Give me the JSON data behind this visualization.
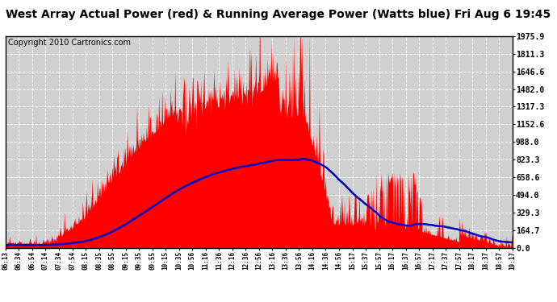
{
  "title": "West Array Actual Power (red) & Running Average Power (Watts blue) Fri Aug 6 19:45",
  "copyright": "Copyright 2010 Cartronics.com",
  "ymin": 0.0,
  "ymax": 1975.9,
  "yticks": [
    0.0,
    164.7,
    329.3,
    494.0,
    658.6,
    823.3,
    988.0,
    1152.6,
    1317.3,
    1482.0,
    1646.6,
    1811.3,
    1975.9
  ],
  "xtick_labels": [
    "06:13",
    "06:34",
    "06:54",
    "07:14",
    "07:34",
    "07:54",
    "08:15",
    "08:35",
    "08:55",
    "09:15",
    "09:35",
    "09:55",
    "10:15",
    "10:35",
    "10:56",
    "11:16",
    "11:36",
    "12:16",
    "12:36",
    "12:56",
    "13:16",
    "13:36",
    "13:56",
    "14:16",
    "14:36",
    "14:56",
    "15:17",
    "15:37",
    "15:57",
    "16:17",
    "16:37",
    "16:57",
    "17:17",
    "17:37",
    "17:57",
    "18:17",
    "18:37",
    "18:57",
    "19:17"
  ],
  "bg_color": "#ffffff",
  "plot_bg": "#d0d0d0",
  "red_color": "#ff0000",
  "blue_color": "#0000cc",
  "grid_color": "#ffffff",
  "title_fontsize": 10,
  "copyright_fontsize": 7,
  "tick_fontsize": 7
}
